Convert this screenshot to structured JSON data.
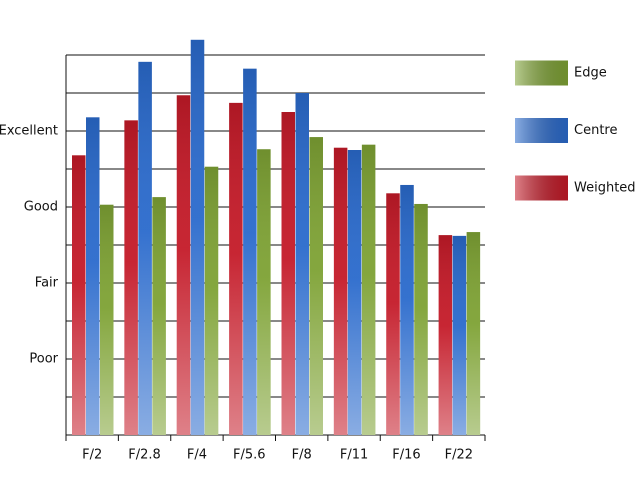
{
  "chart_data": {
    "type": "bar",
    "categories": [
      "F/2",
      "F/2.8",
      "F/4",
      "F/5.6",
      "F/8",
      "F/11",
      "F/16",
      "F/22"
    ],
    "series": [
      {
        "name": "Weighted",
        "color": "#c41a28",
        "values": [
          3.68,
          4.14,
          4.47,
          4.37,
          4.25,
          3.78,
          3.18,
          2.63
        ]
      },
      {
        "name": "Centre",
        "color": "#2a6acc",
        "values": [
          4.18,
          4.91,
          5.2,
          4.82,
          4.5,
          3.75,
          3.29,
          2.62
        ]
      },
      {
        "name": "Edge",
        "color": "#7ea234",
        "values": [
          3.03,
          3.13,
          3.53,
          3.76,
          3.92,
          3.82,
          3.04,
          2.67
        ]
      }
    ],
    "ylim": [
      0,
      5
    ],
    "yticks": [
      {
        "value": 1,
        "label": "Poor"
      },
      {
        "value": 2,
        "label": "Fair"
      },
      {
        "value": 3,
        "label": "Good"
      },
      {
        "value": 4,
        "label": "Excellent"
      }
    ],
    "minor_yticks": [
      0.5,
      1.5,
      2.5,
      3.5,
      4.5,
      5
    ],
    "grid": true,
    "legend": "right"
  }
}
